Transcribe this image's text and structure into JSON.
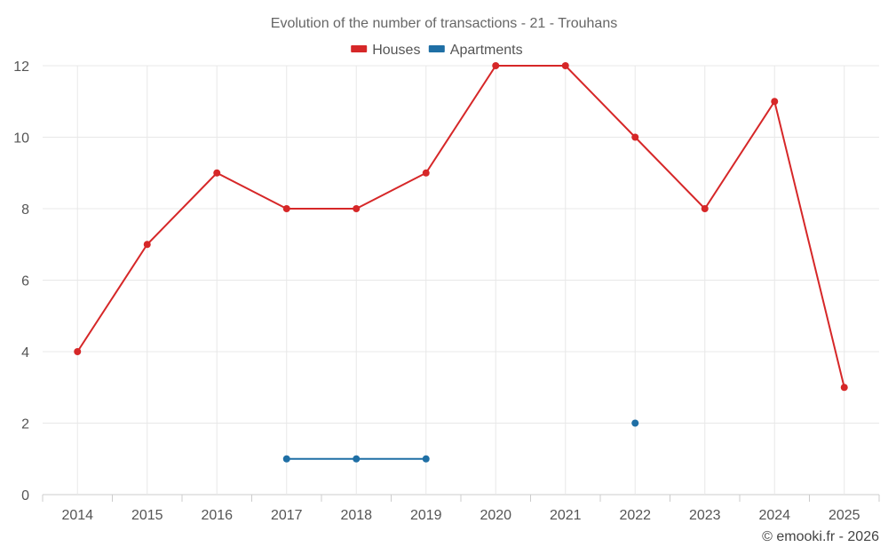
{
  "chart_data": {
    "type": "line",
    "title": "Evolution of the number of transactions - 21 - Trouhans",
    "categories": [
      "2014",
      "2015",
      "2016",
      "2017",
      "2018",
      "2019",
      "2020",
      "2021",
      "2022",
      "2023",
      "2024",
      "2025"
    ],
    "ylim": [
      0,
      12
    ],
    "yticks": [
      0,
      2,
      4,
      6,
      8,
      10,
      12
    ],
    "grid": true,
    "legend_position": "top-center",
    "series": [
      {
        "name": "Houses",
        "color": "#d62728",
        "values": [
          4,
          7,
          9,
          8,
          8,
          9,
          12,
          12,
          10,
          8,
          11,
          3
        ]
      },
      {
        "name": "Apartments",
        "color": "#1f6fa5",
        "values": [
          null,
          null,
          null,
          1,
          1,
          1,
          null,
          null,
          2,
          null,
          null,
          null
        ]
      }
    ]
  },
  "credit": "© emooki.fr - 2026"
}
